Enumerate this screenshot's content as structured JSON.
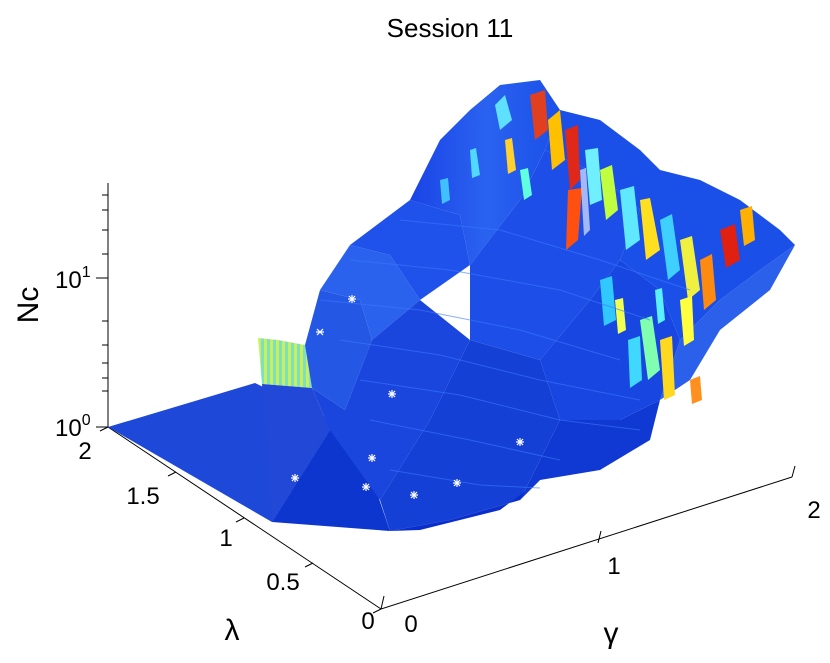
{
  "chart_data": {
    "type": "surface3d",
    "title": "Session 11",
    "xlabel": "γ",
    "ylabel": "λ",
    "zlabel": "Nc",
    "x_ticks": [
      "0",
      "1",
      "2"
    ],
    "y_ticks": [
      "0",
      "0.5",
      "1",
      "1.5",
      "2"
    ],
    "z_ticks": [
      {
        "base": "10",
        "exp": "0"
      },
      {
        "base": "10",
        "exp": "1"
      }
    ],
    "xlim": [
      0,
      2
    ],
    "ylim": [
      0,
      2
    ],
    "zscale": "log",
    "colormap": "jet",
    "markers": "white asterisks on lower surface"
  }
}
